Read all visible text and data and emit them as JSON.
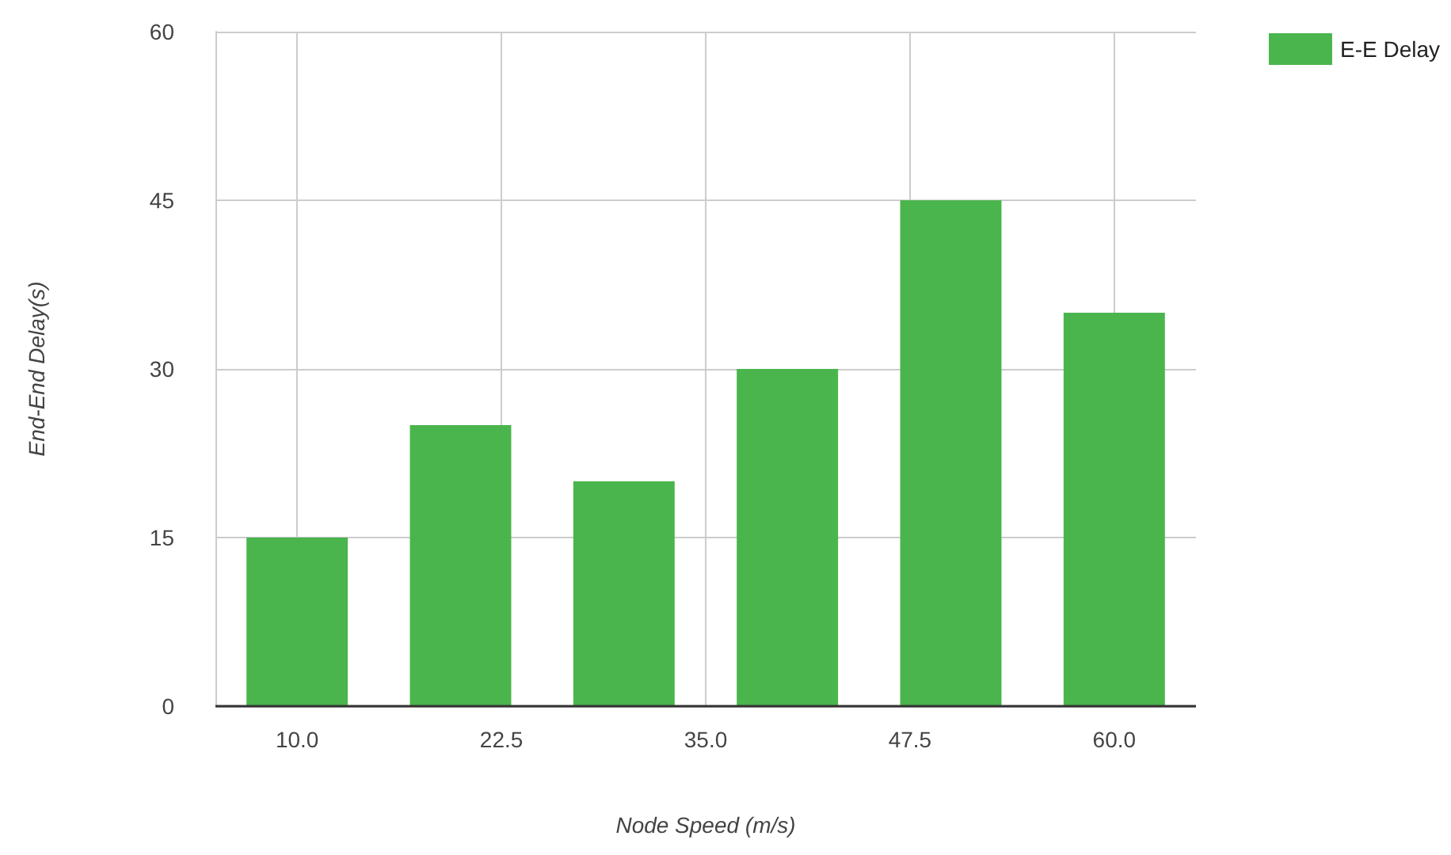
{
  "chart_data": {
    "type": "bar",
    "xlabel": "Node Speed (m/s)",
    "ylabel": "End-End Delay(s)",
    "x": [
      10,
      20,
      30,
      40,
      50,
      60
    ],
    "series": [
      {
        "name": "E-E Delay",
        "color": "#4ab54c",
        "values": [
          15,
          25,
          20,
          30,
          45,
          35
        ]
      }
    ],
    "xlim": [
      5,
      65
    ],
    "xticks": [
      {
        "value": 10,
        "label": "10.0"
      },
      {
        "value": 22.5,
        "label": "22.5"
      },
      {
        "value": 35,
        "label": "35.0"
      },
      {
        "value": 47.5,
        "label": "47.5"
      },
      {
        "value": 60,
        "label": "60.0"
      }
    ],
    "ylim": [
      0,
      60
    ],
    "yticks": [
      0,
      15,
      30,
      45,
      60
    ],
    "grid": true,
    "legend": "top right"
  }
}
